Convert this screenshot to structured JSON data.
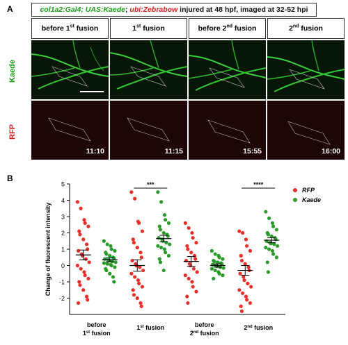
{
  "panel_a": {
    "letter": "A",
    "title": {
      "part1": "col1a2:Gal4; UAS:Kaede",
      "sep": ";",
      "part2": "ubi:Zebrabow",
      "rest": "injured at 48 hpf, imaged at 32-52 hpi"
    },
    "columns": [
      {
        "pre": "before 1",
        "sup": "st",
        "post": " fusion"
      },
      {
        "pre": "1",
        "sup": "st",
        "post": " fusion"
      },
      {
        "pre": "before 2",
        "sup": "nd",
        "post": " fusion"
      },
      {
        "pre": "2",
        "sup": "nd",
        "post": " fusion"
      }
    ],
    "rows": [
      {
        "label": "Kaede",
        "color": "#1a9a1a"
      },
      {
        "label": "RFP",
        "color": "#d42020"
      }
    ],
    "timestamps": [
      "11:10",
      "11:15",
      "15:55",
      "16:00"
    ]
  },
  "panel_b": {
    "letter": "B"
  },
  "chart_data": {
    "type": "scatter",
    "ylabel": "Change of fluorescent intensity",
    "ylim": [
      -3,
      5
    ],
    "yticks": [
      -2,
      -1,
      0,
      1,
      2,
      3,
      4,
      5
    ],
    "legend": [
      {
        "name": "RFP",
        "color": "#e8302a"
      },
      {
        "name": "Kaede",
        "color": "#2a9a2a"
      }
    ],
    "legend_position": "top-right",
    "groups": [
      {
        "label_line1": "before",
        "label_line2_pre": "1",
        "label_line2_sup": "st",
        "label_line2_post": " fusion",
        "rfp": {
          "mean": 0.65,
          "sem": 0.3,
          "values": [
            3.9,
            3.5,
            2.8,
            2.6,
            2.4,
            2.1,
            1.9,
            1.6,
            1.3,
            1.0,
            0.9,
            0.7,
            0.6,
            0.4,
            0.2,
            0.0,
            -0.2,
            -0.4,
            -0.6,
            -0.8,
            -1.0,
            -1.2,
            -1.5,
            -1.9,
            -2.1,
            -2.3
          ]
        },
        "kaede": {
          "mean": 0.35,
          "sem": 0.12,
          "values": [
            1.5,
            1.3,
            1.2,
            1.0,
            0.9,
            0.8,
            0.7,
            0.6,
            0.5,
            0.45,
            0.4,
            0.35,
            0.3,
            0.25,
            0.2,
            0.15,
            0.1,
            0.05,
            0.0,
            -0.1,
            -0.2,
            -0.3,
            -0.5,
            -0.7,
            -1.0
          ]
        }
      },
      {
        "label_line1": "",
        "label_line2_pre": "1",
        "label_line2_sup": "st",
        "label_line2_post": " fusion",
        "rfp": {
          "mean": 0.0,
          "sem": 0.35,
          "values": [
            4.5,
            4.1,
            2.7,
            2.6,
            2.1,
            1.6,
            1.4,
            1.1,
            0.8,
            0.5,
            0.3,
            0.1,
            0.0,
            -0.1,
            -0.3,
            -0.5,
            -0.7,
            -0.9,
            -1.1,
            -1.3,
            -1.5,
            -1.8,
            -2.0,
            -2.3,
            -2.5
          ]
        },
        "kaede": {
          "mean": 1.65,
          "sem": 0.2,
          "values": [
            4.5,
            3.9,
            3.1,
            2.8,
            2.6,
            2.4,
            2.2,
            2.0,
            1.9,
            1.8,
            1.7,
            1.6,
            1.5,
            1.4,
            1.3,
            1.2,
            1.1,
            1.0,
            0.8,
            0.6,
            0.4,
            0.2,
            -0.3
          ]
        }
      },
      {
        "label_line1": "before",
        "label_line2_pre": "2",
        "label_line2_sup": "nd",
        "label_line2_post": " fusion",
        "rfp": {
          "mean": 0.25,
          "sem": 0.3,
          "values": [
            2.6,
            2.3,
            2.0,
            1.7,
            1.4,
            1.2,
            1.0,
            0.8,
            0.6,
            0.4,
            0.3,
            0.1,
            0.0,
            -0.2,
            -0.4,
            -0.6,
            -0.8,
            -1.0,
            -1.3,
            -1.6,
            -1.9,
            -2.3
          ]
        },
        "kaede": {
          "mean": 0.0,
          "sem": 0.1,
          "values": [
            0.9,
            0.7,
            0.6,
            0.5,
            0.4,
            0.3,
            0.25,
            0.2,
            0.15,
            0.1,
            0.05,
            0.0,
            -0.05,
            -0.1,
            -0.15,
            -0.2,
            -0.3,
            -0.4,
            -0.5,
            -0.6,
            -0.8
          ]
        }
      },
      {
        "label_line1": "",
        "label_line2_pre": "2",
        "label_line2_sup": "nd",
        "label_line2_post": " fusion",
        "rfp": {
          "mean": -0.3,
          "sem": 0.3,
          "values": [
            2.1,
            2.0,
            1.6,
            1.2,
            0.9,
            0.6,
            0.3,
            0.1,
            -0.1,
            -0.3,
            -0.5,
            -0.7,
            -0.9,
            -1.1,
            -1.3,
            -1.5,
            -1.7,
            -1.9,
            -2.1,
            -2.3,
            -2.5,
            -2.8
          ]
        },
        "kaede": {
          "mean": 1.55,
          "sem": 0.15,
          "values": [
            3.3,
            2.9,
            2.6,
            2.4,
            2.2,
            2.0,
            1.9,
            1.8,
            1.7,
            1.6,
            1.5,
            1.4,
            1.35,
            1.3,
            1.2,
            1.1,
            1.0,
            0.9,
            0.7,
            0.5,
            0.2,
            -0.4
          ]
        }
      }
    ],
    "significance": [
      {
        "group": 1,
        "label": "***"
      },
      {
        "group": 3,
        "label": "****"
      }
    ]
  }
}
